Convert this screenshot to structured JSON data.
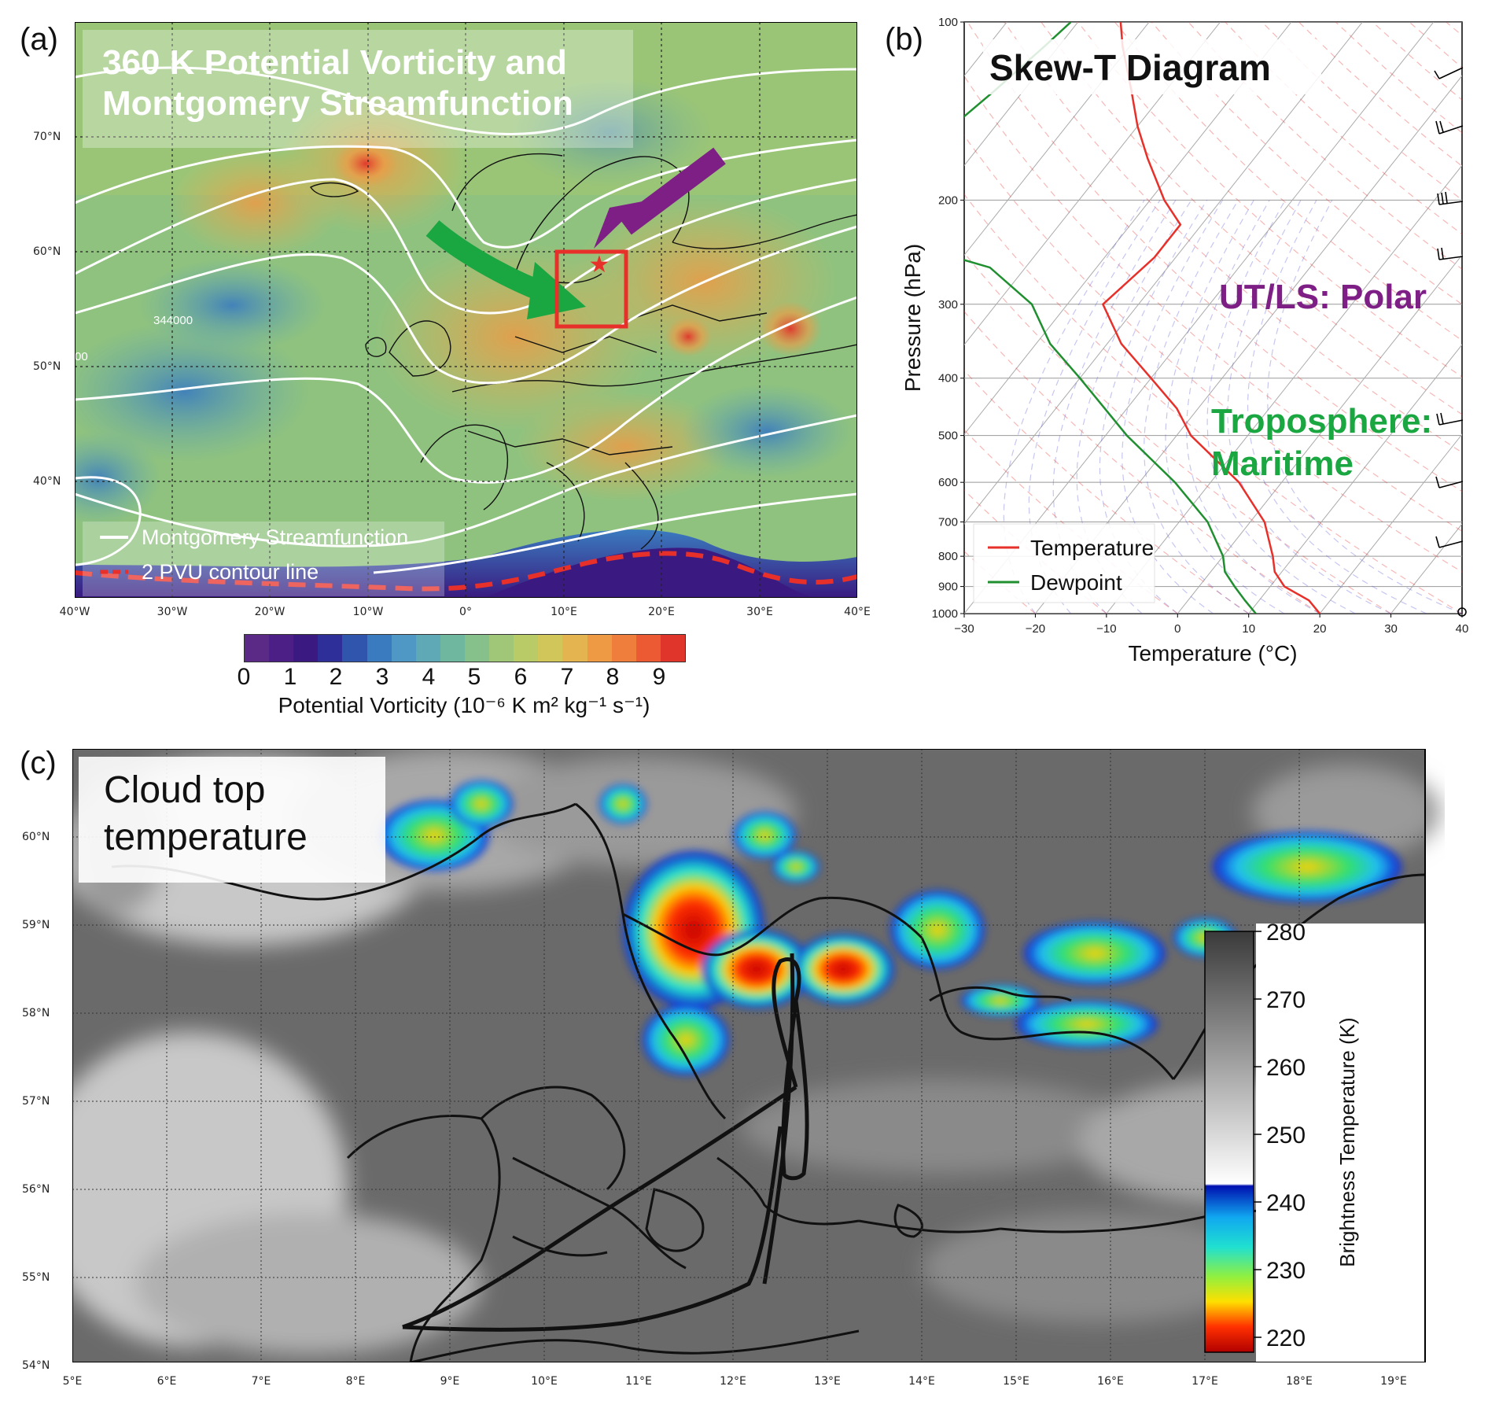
{
  "panels": {
    "a": {
      "label": "(a)",
      "title_line1": "360 K Potential Vorticity and",
      "title_line2": "Montgomery Streamfunction",
      "lat_labels": [
        "70°N",
        "60°N",
        "50°N",
        "40°N"
      ],
      "lon_labels": [
        "40°W",
        "30°W",
        "20°W",
        "10°W",
        "0°",
        "10°E",
        "20°E",
        "30°E",
        "40°E"
      ],
      "contour_labels": [
        "344000",
        "00"
      ],
      "legend": {
        "streamfunction": "Montgomery Streamfunction",
        "pvu": "2 PVU contour line",
        "streamfunction_color": "#ffffff",
        "pvu_color": "#e8302a"
      },
      "colorbar": {
        "ticks": [
          "0",
          "1",
          "2",
          "3",
          "4",
          "5",
          "6",
          "7",
          "8",
          "9"
        ],
        "label": "Potential Vorticity (10⁻⁶ K m² kg⁻¹ s⁻¹)",
        "colors": [
          "#5b2a86",
          "#4b1f86",
          "#3a1a80",
          "#2f2f9a",
          "#2f55ad",
          "#3a7bbf",
          "#4f97c4",
          "#5fa9b6",
          "#6fb79f",
          "#86c08a",
          "#9fc777",
          "#b8cb66",
          "#d0c65a",
          "#e4b451",
          "#ee9a45",
          "#ef7d3c",
          "#eb5a33",
          "#e0352b"
        ]
      },
      "arrow_colors": {
        "green": "#1aa640",
        "purple": "#7e1f86"
      },
      "box_color": "#e8302a"
    },
    "b": {
      "label": "(b)",
      "title": "Skew-T Diagram",
      "ylabel": "Pressure (hPa)",
      "xlabel": "Temperature (°C)",
      "annotation_polar": "UT/LS: Polar",
      "annotation_trop_line1": "Troposphere:",
      "annotation_trop_line2": "Maritime",
      "polar_color": "#7e1f86",
      "trop_color": "#1aa640",
      "legend_temperature": "Temperature",
      "legend_dewpoint": "Dewpoint"
    },
    "c": {
      "label": "(c)",
      "title_line1": "Cloud top",
      "title_line2": "temperature",
      "lat_labels": [
        "60°N",
        "59°N",
        "58°N",
        "57°N",
        "56°N",
        "55°N",
        "54°N"
      ],
      "lon_labels": [
        "5°E",
        "6°E",
        "7°E",
        "8°E",
        "9°E",
        "10°E",
        "11°E",
        "12°E",
        "13°E",
        "14°E",
        "15°E",
        "16°E",
        "17°E",
        "18°E",
        "19°E"
      ],
      "colorbar": {
        "ticks": [
          "280",
          "270",
          "260",
          "250",
          "240",
          "230",
          "220"
        ],
        "label": "Brightness Temperature (K)"
      }
    }
  },
  "chart_data": {
    "type": "line",
    "title": "Skew-T Diagram",
    "xlabel": "Temperature (°C)",
    "ylabel": "Pressure (hPa)",
    "xlim": [
      -30,
      40
    ],
    "ylim": [
      1000,
      100
    ],
    "y_scale": "log",
    "x_ticks": [
      "−30",
      "−20",
      "−10",
      "0",
      "10",
      "20",
      "30",
      "40"
    ],
    "y_ticks": [
      "100",
      "200",
      "300",
      "400",
      "500",
      "600",
      "700",
      "800",
      "900",
      "1000"
    ],
    "legend": "bottom-left",
    "series": [
      {
        "name": "Temperature",
        "color": "#e8302a",
        "pressure": [
          1000,
          950,
          900,
          850,
          800,
          700,
          600,
          500,
          450,
          400,
          350,
          300,
          250,
          220,
          200,
          170,
          150,
          130,
          110,
          100
        ],
        "temperature": [
          20,
          17,
          12,
          9,
          7,
          2,
          -6,
          -18,
          -23,
          -30,
          -38,
          -45,
          -43,
          -43,
          -48,
          -55,
          -60,
          -65,
          -71,
          -74
        ]
      },
      {
        "name": "Dewpoint",
        "color": "#1f8f2f",
        "pressure": [
          1000,
          950,
          900,
          850,
          800,
          700,
          600,
          500,
          400,
          350,
          300,
          260,
          250,
          230,
          220,
          200,
          170,
          150,
          130,
          110,
          100
        ],
        "temperature": [
          11,
          8,
          5,
          2,
          0,
          -6,
          -15,
          -27,
          -40,
          -48,
          -55,
          -65,
          -71,
          -83,
          -85,
          -86,
          -87,
          -86,
          -84,
          -82,
          -81
        ]
      }
    ]
  }
}
